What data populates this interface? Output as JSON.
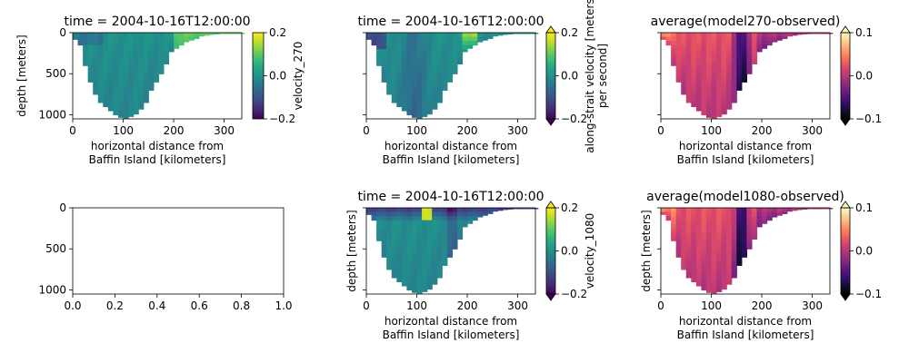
{
  "figure": {
    "background": "#ffffff"
  },
  "colormaps": {
    "viridis": [
      "#440154",
      "#482475",
      "#414487",
      "#355f8d",
      "#2a788e",
      "#21918c",
      "#22a884",
      "#44bf70",
      "#7ad151",
      "#bddf26",
      "#fde725"
    ],
    "magma": [
      "#000004",
      "#140e36",
      "#3b0f70",
      "#641a80",
      "#8c2981",
      "#b73779",
      "#de4968",
      "#f7705c",
      "#fe9f6d",
      "#fecf92",
      "#fcfdbf"
    ]
  },
  "chart_data": [
    {
      "id": "velocity-270",
      "type": "heatmap",
      "title": "time = 2004-10-16T12:00:00",
      "xlabel": [
        "horizontal distance from",
        "Baffin Island [kilometers]"
      ],
      "ylabel": "depth [meters]",
      "xlim": [
        0,
        335
      ],
      "ylim": [
        1050,
        0
      ],
      "xticks": [
        0,
        100,
        200,
        300
      ],
      "yticks": [
        0,
        500,
        1000
      ],
      "show_yticklabels": true,
      "colormap": "viridis",
      "colorbar": {
        "label": [
          "velocity_270"
        ],
        "ticks": [
          "0.2",
          "0.0",
          "−0.2"
        ],
        "extend": false
      },
      "field": "velocity"
    },
    {
      "id": "velocity-observed",
      "type": "heatmap",
      "title": "time = 2004-10-16T12:00:00",
      "xlabel": [
        "horizontal distance from",
        "Baffin Island [kilometers]"
      ],
      "ylabel": "",
      "xlim": [
        0,
        335
      ],
      "ylim": [
        1050,
        0
      ],
      "xticks": [
        0,
        100,
        200,
        300
      ],
      "yticks": [
        0,
        500,
        1000
      ],
      "show_yticklabels": false,
      "colormap": "viridis",
      "colorbar": {
        "label": [
          "along-strait velocity [meters",
          "per second]"
        ],
        "ticks": [
          "0.2",
          "0.0",
          "−0.2"
        ],
        "extend": true
      },
      "field": "velocity"
    },
    {
      "id": "diff-270",
      "type": "heatmap",
      "title": "average(model270-observed)",
      "xlabel": [
        "horizontal distance from",
        "Baffin Island [kilometers]"
      ],
      "ylabel": "",
      "xlim": [
        0,
        335
      ],
      "ylim": [
        1050,
        0
      ],
      "xticks": [
        0,
        100,
        200,
        300
      ],
      "yticks": [
        0,
        500,
        1000
      ],
      "show_yticklabels": false,
      "colormap": "magma",
      "colorbar": {
        "label": [],
        "ticks": [
          "0.1",
          "0.0",
          "−0.1"
        ],
        "extend": true
      },
      "field": "difference"
    },
    {
      "id": "empty-axes",
      "type": "line",
      "title": "",
      "xlabel": [],
      "ylabel": "",
      "xlim": [
        0,
        1
      ],
      "ylim": [
        1050,
        0
      ],
      "xticks": [
        "0.0",
        "0.2",
        "0.4",
        "0.6",
        "0.8",
        "1.0"
      ],
      "yticks": [
        0,
        500,
        1000
      ],
      "show_yticklabels": true,
      "series": []
    },
    {
      "id": "velocity-1080",
      "type": "heatmap",
      "title": "time = 2004-10-16T12:00:00",
      "xlabel": [
        "horizontal distance from",
        "Baffin Island [kilometers]"
      ],
      "ylabel": "depth [meters]",
      "xlim": [
        0,
        335
      ],
      "ylim": [
        1050,
        0
      ],
      "xticks": [
        0,
        100,
        200,
        300
      ],
      "yticks": [
        0,
        500,
        1000
      ],
      "show_yticklabels": false,
      "colormap": "viridis",
      "colorbar": {
        "label": [
          "velocity_1080"
        ],
        "ticks": [
          "0.2",
          "0.0",
          "−0.2"
        ],
        "extend": true
      },
      "field": "velocity"
    },
    {
      "id": "diff-1080",
      "type": "heatmap",
      "title": "average(model1080-observed)",
      "xlabel": [
        "horizontal distance from",
        "Baffin Island [kilometers]"
      ],
      "ylabel": "depth [meters]",
      "xlim": [
        0,
        335
      ],
      "ylim": [
        1050,
        0
      ],
      "xticks": [
        0,
        100,
        200,
        300
      ],
      "yticks": [
        0,
        500,
        1000
      ],
      "show_yticklabels": false,
      "colormap": "magma",
      "colorbar": {
        "label": [],
        "ticks": [
          "0.1",
          "0.0",
          "−0.1"
        ],
        "extend": true
      },
      "field": "difference"
    }
  ],
  "cross_section": {
    "x_step_km": 10,
    "x_km": [
      0,
      10,
      20,
      30,
      40,
      50,
      60,
      70,
      80,
      90,
      100,
      110,
      120,
      130,
      140,
      150,
      160,
      170,
      180,
      190,
      200,
      210,
      220,
      230,
      240,
      250,
      260,
      270,
      280,
      290,
      300,
      310,
      320,
      330
    ],
    "bottom_depth_m": [
      80,
      150,
      400,
      600,
      750,
      850,
      900,
      950,
      1000,
      1030,
      1040,
      1020,
      990,
      930,
      850,
      700,
      600,
      500,
      380,
      230,
      190,
      150,
      110,
      90,
      70,
      40,
      30,
      20,
      15,
      10,
      10,
      10,
      10,
      10
    ]
  }
}
